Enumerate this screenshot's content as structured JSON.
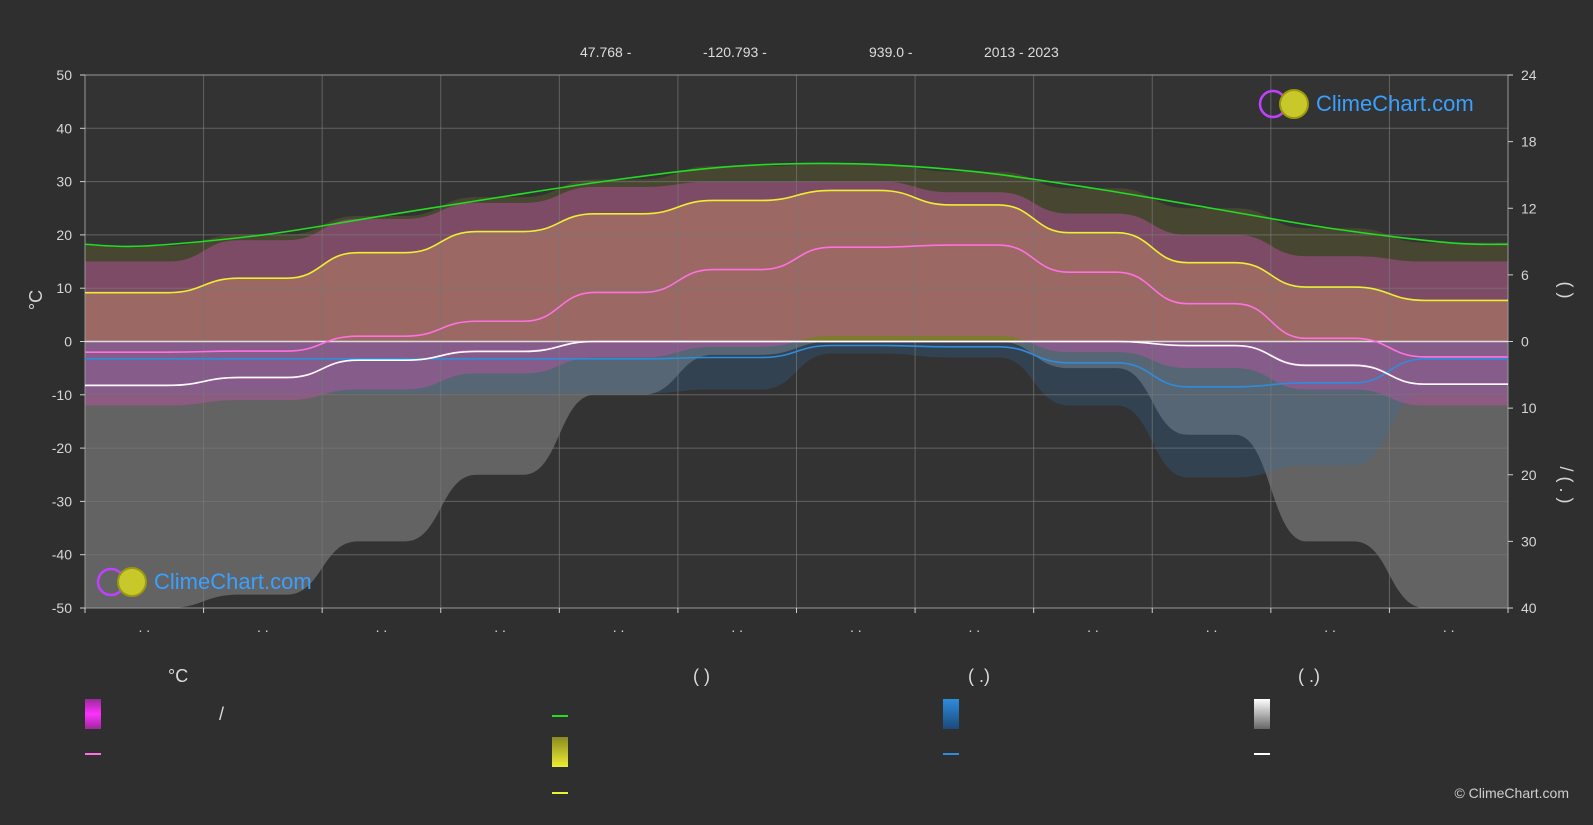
{
  "header": {
    "lat": "47.768 -",
    "lon": "-120.793 -",
    "elev": "939.0 -",
    "years": "2013 - 2023"
  },
  "logo_text": "ClimeChart.com",
  "copyright": "© ClimeChart.com",
  "legend": {
    "temp_title": "°C",
    "sun_title": "(          )",
    "rain_title": "(   .)",
    "snow_title": "(   .)",
    "temp_range_text": "/"
  },
  "colors": {
    "background": "#2f2f2f",
    "daylight": "#22dd22",
    "sunshine": "#eeee33",
    "temp_max": "#ff70e0",
    "temp_min": "#ff70e0",
    "rain": "#2e8cdd",
    "snow": "#ffffff",
    "logo": "#3aa0ff"
  },
  "chart_data": {
    "type": "line",
    "months": 12,
    "x_tick_labels": [
      ". .",
      ". .",
      ". .",
      ". .",
      ". .",
      ". .",
      ". .",
      ". .",
      ". .",
      ". .",
      ". .",
      ". ."
    ],
    "ylabel_left": "°C",
    "ylabel_right_top": "(     )",
    "ylabel_right_bottom": "/   ( .   )",
    "ylim_left": [
      -50,
      50
    ],
    "yticks_left": [
      50,
      40,
      30,
      20,
      10,
      0,
      -10,
      -20,
      -30,
      -40,
      -50
    ],
    "right_top_range": [
      0,
      24
    ],
    "yticks_right_top": [
      24,
      18,
      12,
      6,
      0
    ],
    "right_bottom_range": [
      0,
      40
    ],
    "yticks_right_bottom": [
      10,
      20,
      30,
      40
    ],
    "grid": true,
    "series": [
      {
        "key": "daylight",
        "axis": "hours",
        "values": [
          8.6,
          9.6,
          11.3,
          13.0,
          14.6,
          15.8,
          16.0,
          15.3,
          13.8,
          12.0,
          10.2,
          8.9
        ]
      },
      {
        "key": "sunshine",
        "axis": "hours",
        "values": [
          4.4,
          5.7,
          8.0,
          9.9,
          11.5,
          12.7,
          13.6,
          12.3,
          9.8,
          7.1,
          4.9,
          3.7
        ]
      },
      {
        "key": "temp_max",
        "axis": "temp",
        "values": [
          -2.0,
          -1.8,
          1.0,
          3.8,
          9.2,
          13.5,
          17.7,
          18.1,
          13.0,
          7.1,
          0.6,
          -2.9
        ]
      },
      {
        "key": "temp_min",
        "axis": "temp",
        "values": [
          -8.2,
          -6.8,
          -3.5,
          -1.8,
          0.0,
          0.0,
          0.0,
          0.0,
          0.0,
          -0.8,
          -4.4,
          -8.0
        ]
      },
      {
        "key": "rain",
        "axis": "precip",
        "values": [
          2.6,
          2.6,
          2.6,
          2.6,
          2.6,
          2.4,
          0.6,
          0.8,
          3.2,
          6.8,
          6.2,
          2.6
        ]
      },
      {
        "key": "snow",
        "axis": "precip",
        "values": [
          6.6,
          5.4,
          2.8,
          1.5,
          0.0,
          0.0,
          0.0,
          0.0,
          0.0,
          0.6,
          3.6,
          6.4
        ]
      }
    ],
    "bands": {
      "temp_range_top": [
        15,
        19,
        23,
        26,
        29,
        30,
        30,
        28,
        24,
        20,
        16,
        15
      ],
      "temp_range_bottom": [
        -12,
        -11,
        -9,
        -6,
        -3,
        -1,
        1,
        1,
        -2,
        -5,
        -9,
        -12
      ],
      "sunshine_fill": [
        4.4,
        5.7,
        8.0,
        9.9,
        11.5,
        12.7,
        13.6,
        12.3,
        9.8,
        7.1,
        4.9,
        3.7
      ],
      "snow_fill": [
        40,
        38,
        30,
        20,
        8,
        2,
        0,
        0,
        4,
        14,
        30,
        40
      ]
    }
  }
}
